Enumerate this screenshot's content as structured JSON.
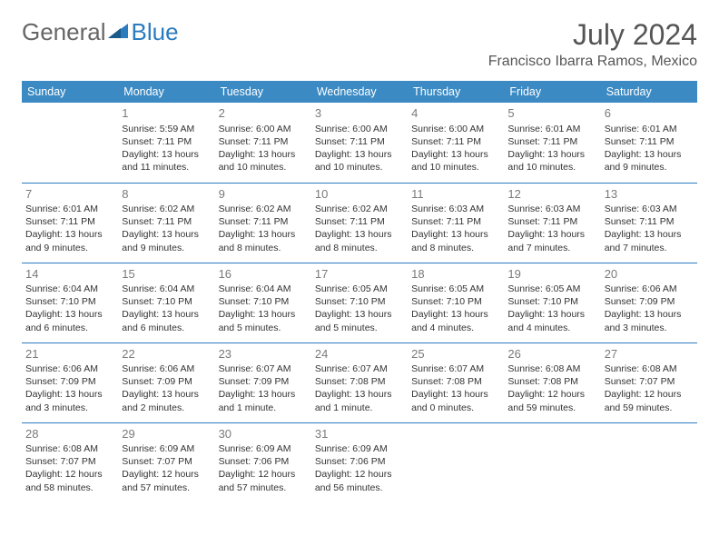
{
  "logo": {
    "text_general": "General",
    "text_blue": "Blue"
  },
  "header": {
    "month": "July 2024",
    "location": "Francisco Ibarra Ramos, Mexico"
  },
  "colors": {
    "header_bg": "#3b8ac4",
    "border": "#2b7bbf",
    "logo_gray": "#666666",
    "logo_blue": "#2b7bbf",
    "text": "#333333",
    "daynum": "#7a7a7a"
  },
  "columns": [
    "Sunday",
    "Monday",
    "Tuesday",
    "Wednesday",
    "Thursday",
    "Friday",
    "Saturday"
  ],
  "weeks": [
    [
      null,
      {
        "n": "1",
        "sr": "5:59 AM",
        "ss": "7:11 PM",
        "dl": "13 hours and 11 minutes."
      },
      {
        "n": "2",
        "sr": "6:00 AM",
        "ss": "7:11 PM",
        "dl": "13 hours and 10 minutes."
      },
      {
        "n": "3",
        "sr": "6:00 AM",
        "ss": "7:11 PM",
        "dl": "13 hours and 10 minutes."
      },
      {
        "n": "4",
        "sr": "6:00 AM",
        "ss": "7:11 PM",
        "dl": "13 hours and 10 minutes."
      },
      {
        "n": "5",
        "sr": "6:01 AM",
        "ss": "7:11 PM",
        "dl": "13 hours and 10 minutes."
      },
      {
        "n": "6",
        "sr": "6:01 AM",
        "ss": "7:11 PM",
        "dl": "13 hours and 9 minutes."
      }
    ],
    [
      {
        "n": "7",
        "sr": "6:01 AM",
        "ss": "7:11 PM",
        "dl": "13 hours and 9 minutes."
      },
      {
        "n": "8",
        "sr": "6:02 AM",
        "ss": "7:11 PM",
        "dl": "13 hours and 9 minutes."
      },
      {
        "n": "9",
        "sr": "6:02 AM",
        "ss": "7:11 PM",
        "dl": "13 hours and 8 minutes."
      },
      {
        "n": "10",
        "sr": "6:02 AM",
        "ss": "7:11 PM",
        "dl": "13 hours and 8 minutes."
      },
      {
        "n": "11",
        "sr": "6:03 AM",
        "ss": "7:11 PM",
        "dl": "13 hours and 8 minutes."
      },
      {
        "n": "12",
        "sr": "6:03 AM",
        "ss": "7:11 PM",
        "dl": "13 hours and 7 minutes."
      },
      {
        "n": "13",
        "sr": "6:03 AM",
        "ss": "7:11 PM",
        "dl": "13 hours and 7 minutes."
      }
    ],
    [
      {
        "n": "14",
        "sr": "6:04 AM",
        "ss": "7:10 PM",
        "dl": "13 hours and 6 minutes."
      },
      {
        "n": "15",
        "sr": "6:04 AM",
        "ss": "7:10 PM",
        "dl": "13 hours and 6 minutes."
      },
      {
        "n": "16",
        "sr": "6:04 AM",
        "ss": "7:10 PM",
        "dl": "13 hours and 5 minutes."
      },
      {
        "n": "17",
        "sr": "6:05 AM",
        "ss": "7:10 PM",
        "dl": "13 hours and 5 minutes."
      },
      {
        "n": "18",
        "sr": "6:05 AM",
        "ss": "7:10 PM",
        "dl": "13 hours and 4 minutes."
      },
      {
        "n": "19",
        "sr": "6:05 AM",
        "ss": "7:10 PM",
        "dl": "13 hours and 4 minutes."
      },
      {
        "n": "20",
        "sr": "6:06 AM",
        "ss": "7:09 PM",
        "dl": "13 hours and 3 minutes."
      }
    ],
    [
      {
        "n": "21",
        "sr": "6:06 AM",
        "ss": "7:09 PM",
        "dl": "13 hours and 3 minutes."
      },
      {
        "n": "22",
        "sr": "6:06 AM",
        "ss": "7:09 PM",
        "dl": "13 hours and 2 minutes."
      },
      {
        "n": "23",
        "sr": "6:07 AM",
        "ss": "7:09 PM",
        "dl": "13 hours and 1 minute."
      },
      {
        "n": "24",
        "sr": "6:07 AM",
        "ss": "7:08 PM",
        "dl": "13 hours and 1 minute."
      },
      {
        "n": "25",
        "sr": "6:07 AM",
        "ss": "7:08 PM",
        "dl": "13 hours and 0 minutes."
      },
      {
        "n": "26",
        "sr": "6:08 AM",
        "ss": "7:08 PM",
        "dl": "12 hours and 59 minutes."
      },
      {
        "n": "27",
        "sr": "6:08 AM",
        "ss": "7:07 PM",
        "dl": "12 hours and 59 minutes."
      }
    ],
    [
      {
        "n": "28",
        "sr": "6:08 AM",
        "ss": "7:07 PM",
        "dl": "12 hours and 58 minutes."
      },
      {
        "n": "29",
        "sr": "6:09 AM",
        "ss": "7:07 PM",
        "dl": "12 hours and 57 minutes."
      },
      {
        "n": "30",
        "sr": "6:09 AM",
        "ss": "7:06 PM",
        "dl": "12 hours and 57 minutes."
      },
      {
        "n": "31",
        "sr": "6:09 AM",
        "ss": "7:06 PM",
        "dl": "12 hours and 56 minutes."
      },
      null,
      null,
      null
    ]
  ],
  "labels": {
    "sunrise": "Sunrise:",
    "sunset": "Sunset:",
    "daylight": "Daylight:"
  }
}
